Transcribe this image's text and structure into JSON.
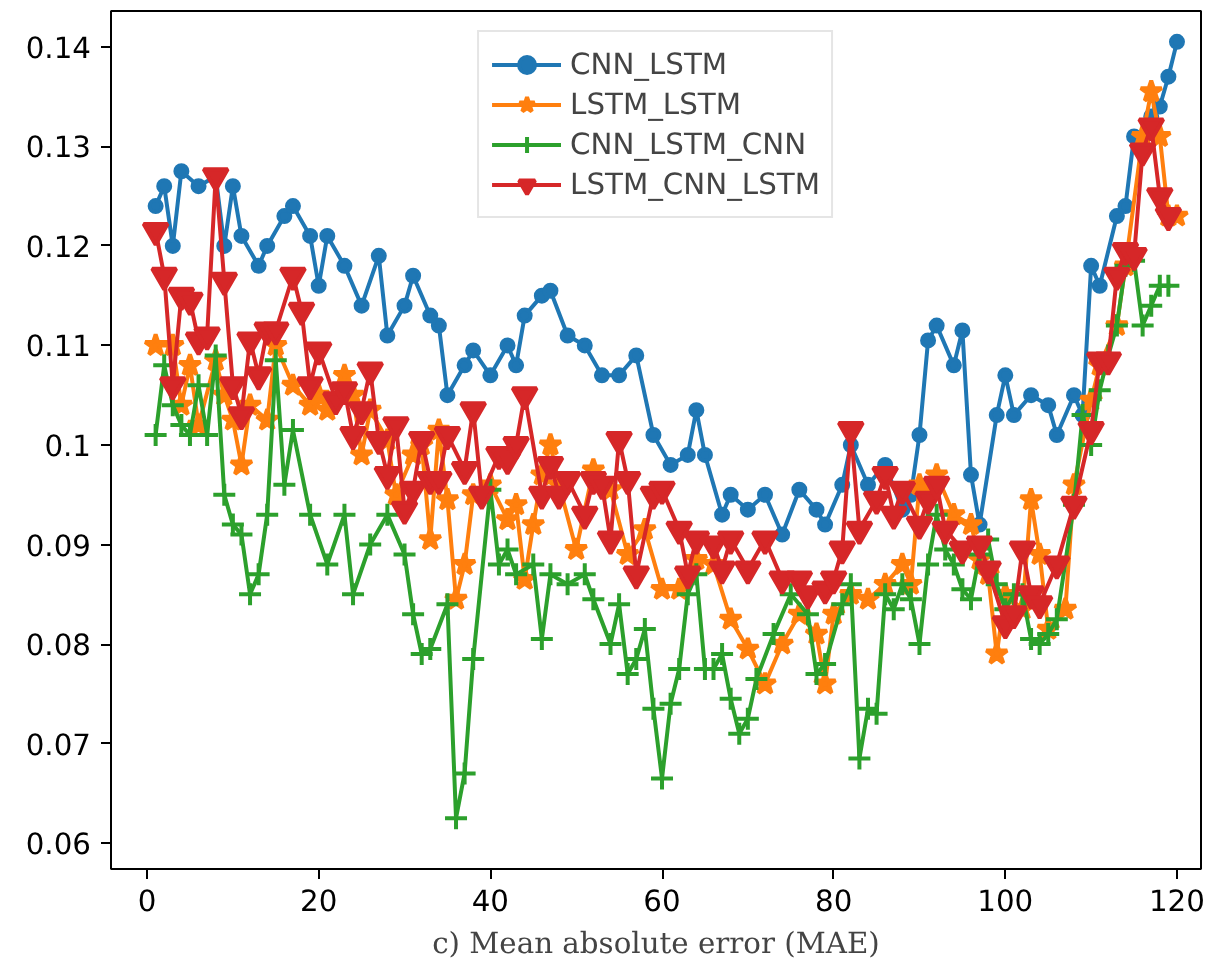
{
  "chart_data": {
    "type": "line",
    "xlabel": "c) Mean absolute error (MAE)",
    "xlim": [
      -4.2,
      122.8
    ],
    "ylim": [
      0.0574,
      0.1436
    ],
    "xticks": [
      0,
      20,
      40,
      60,
      80,
      100,
      120
    ],
    "yticks": [
      0.06,
      0.07,
      0.08,
      0.09,
      0.1,
      0.11,
      0.12,
      0.13,
      0.14
    ],
    "grid": false,
    "legend": "top",
    "series": [
      {
        "name": "CNN_LSTM",
        "color": "#1f77b4",
        "marker": "circle",
        "x": [
          1,
          2,
          3,
          4,
          6,
          8,
          9,
          10,
          11,
          13,
          14,
          16,
          17,
          19,
          20,
          21,
          23,
          25,
          27,
          28,
          30,
          31,
          33,
          34,
          35,
          37,
          38,
          40,
          42,
          43,
          44,
          46,
          47,
          49,
          51,
          53,
          55,
          57,
          59,
          61,
          63,
          64,
          65,
          67,
          68,
          70,
          72,
          74,
          76,
          78,
          79,
          81,
          82,
          84,
          86,
          88,
          89,
          90,
          91,
          92,
          94,
          95,
          96,
          97,
          99,
          100,
          101,
          103,
          105,
          106,
          108,
          109,
          110,
          111,
          113,
          114,
          115,
          116,
          117,
          118,
          119,
          120
        ],
        "values": [
          0.124,
          0.126,
          0.12,
          0.1275,
          0.126,
          0.127,
          0.12,
          0.126,
          0.121,
          0.118,
          0.12,
          0.123,
          0.124,
          0.121,
          0.116,
          0.121,
          0.118,
          0.114,
          0.119,
          0.111,
          0.114,
          0.117,
          0.113,
          0.112,
          0.105,
          0.108,
          0.1095,
          0.107,
          0.11,
          0.108,
          0.113,
          0.115,
          0.1155,
          0.111,
          0.11,
          0.107,
          0.107,
          0.109,
          0.101,
          0.098,
          0.099,
          0.1035,
          0.099,
          0.093,
          0.095,
          0.0935,
          0.095,
          0.091,
          0.0955,
          0.0935,
          0.092,
          0.096,
          0.1,
          0.096,
          0.098,
          0.0935,
          0.095,
          0.101,
          0.1105,
          0.112,
          0.108,
          0.1115,
          0.097,
          0.092,
          0.103,
          0.107,
          0.103,
          0.105,
          0.104,
          0.101,
          0.105,
          0.103,
          0.118,
          0.116,
          0.123,
          0.124,
          0.131,
          0.13,
          0.133,
          0.134,
          0.137,
          0.1405
        ]
      },
      {
        "name": "LSTM_LSTM",
        "color": "#ff7f0e",
        "marker": "star",
        "x": [
          1,
          3,
          4,
          5,
          6,
          8,
          9,
          10,
          11,
          12,
          14,
          15,
          17,
          19,
          20,
          21,
          23,
          24,
          25,
          26,
          28,
          29,
          31,
          32,
          33,
          34,
          35,
          36,
          37,
          38,
          40,
          42,
          43,
          44,
          45,
          46,
          47,
          48,
          50,
          52,
          54,
          56,
          58,
          60,
          62,
          64,
          66,
          68,
          70,
          72,
          74,
          76,
          78,
          79,
          80,
          82,
          84,
          86,
          88,
          89,
          90,
          91,
          92,
          94,
          96,
          97,
          98,
          99,
          100,
          102,
          103,
          104,
          105,
          107,
          108,
          110,
          111,
          113,
          114,
          116,
          117,
          118,
          119,
          120
        ],
        "values": [
          0.11,
          0.11,
          0.104,
          0.108,
          0.102,
          0.1085,
          0.105,
          0.1025,
          0.098,
          0.104,
          0.1025,
          0.11,
          0.106,
          0.104,
          0.105,
          0.1035,
          0.107,
          0.105,
          0.099,
          0.1035,
          0.1005,
          0.095,
          0.099,
          0.1,
          0.0905,
          0.1015,
          0.0945,
          0.0845,
          0.088,
          0.095,
          0.096,
          0.0925,
          0.094,
          0.0865,
          0.092,
          0.097,
          0.1,
          0.096,
          0.0895,
          0.0975,
          0.0955,
          0.089,
          0.0915,
          0.0855,
          0.0855,
          0.0885,
          0.088,
          0.0825,
          0.0795,
          0.076,
          0.08,
          0.083,
          0.081,
          0.076,
          0.083,
          0.085,
          0.0845,
          0.086,
          0.088,
          0.086,
          0.096,
          0.0955,
          0.097,
          0.093,
          0.092,
          0.0885,
          0.087,
          0.079,
          0.085,
          0.0835,
          0.0945,
          0.089,
          0.0815,
          0.0835,
          0.096,
          0.1045,
          0.108,
          0.112,
          0.118,
          0.131,
          0.1355,
          0.131,
          0.123,
          0.123
        ]
      },
      {
        "name": "CNN_LSTM_CNN",
        "color": "#2ca02c",
        "marker": "cross",
        "x": [
          1,
          2,
          3,
          4,
          5,
          6,
          7,
          8,
          9,
          10,
          11,
          12,
          13,
          14,
          15,
          16,
          17,
          19,
          21,
          23,
          24,
          26,
          28,
          30,
          31,
          32,
          33,
          35,
          36,
          37,
          38,
          40,
          41,
          42,
          43,
          45,
          46,
          47,
          49,
          51,
          52,
          54,
          55,
          56,
          57,
          58,
          59,
          60,
          61,
          62,
          63,
          64,
          65,
          66,
          67,
          68,
          69,
          70,
          71,
          73,
          75,
          77,
          78,
          79,
          81,
          82,
          83,
          84,
          85,
          86,
          87,
          88,
          89,
          90,
          91,
          92,
          93,
          94,
          95,
          96,
          97,
          98,
          99,
          100,
          101,
          102,
          103,
          104,
          105,
          106,
          108,
          109,
          110,
          111,
          112,
          113,
          114,
          115,
          116,
          117,
          118,
          119
        ],
        "values": [
          0.101,
          0.108,
          0.104,
          0.102,
          0.101,
          0.106,
          0.101,
          0.109,
          0.095,
          0.092,
          0.091,
          0.085,
          0.087,
          0.093,
          0.1085,
          0.096,
          0.1015,
          0.093,
          0.088,
          0.093,
          0.085,
          0.09,
          0.093,
          0.089,
          0.083,
          0.079,
          0.0795,
          0.084,
          0.0625,
          0.067,
          0.0785,
          0.0955,
          0.088,
          0.0895,
          0.087,
          0.088,
          0.0805,
          0.087,
          0.086,
          0.087,
          0.0845,
          0.08,
          0.084,
          0.077,
          0.0785,
          0.0815,
          0.0735,
          0.0665,
          0.074,
          0.0775,
          0.085,
          0.087,
          0.0775,
          0.0775,
          0.079,
          0.0745,
          0.071,
          0.0725,
          0.0765,
          0.081,
          0.085,
          0.083,
          0.077,
          0.078,
          0.084,
          0.086,
          0.0685,
          0.0735,
          0.073,
          0.085,
          0.0835,
          0.086,
          0.0845,
          0.08,
          0.088,
          0.093,
          0.0895,
          0.088,
          0.0855,
          0.0845,
          0.089,
          0.0905,
          0.086,
          0.0835,
          0.085,
          0.085,
          0.0805,
          0.08,
          0.081,
          0.0825,
          0.094,
          0.103,
          0.1,
          0.1055,
          0.109,
          0.112,
          0.118,
          0.1185,
          0.112,
          0.114,
          0.116,
          0.116
        ]
      },
      {
        "name": "LSTM_CNN_LSTM",
        "color": "#d62728",
        "marker": "triangle",
        "x": [
          1,
          2,
          3,
          4,
          5,
          6,
          7,
          8,
          9,
          10,
          11,
          12,
          13,
          14,
          15,
          17,
          18,
          19,
          20,
          22,
          23,
          24,
          25,
          26,
          27,
          28,
          29,
          30,
          31,
          32,
          33,
          34,
          35,
          37,
          38,
          39,
          41,
          42,
          43,
          44,
          46,
          47,
          48,
          49,
          51,
          52,
          53,
          54,
          55,
          56,
          57,
          59,
          60,
          62,
          63,
          64,
          66,
          67,
          68,
          70,
          72,
          74,
          76,
          77,
          79,
          80,
          81,
          82,
          83,
          85,
          86,
          87,
          88,
          90,
          91,
          92,
          93,
          95,
          97,
          98,
          100,
          101,
          102,
          103,
          104,
          106,
          108,
          110,
          111,
          112,
          113,
          114,
          115,
          116,
          117,
          118,
          119
        ],
        "values": [
          0.1215,
          0.117,
          0.106,
          0.115,
          0.1145,
          0.1105,
          0.111,
          0.127,
          0.1165,
          0.106,
          0.103,
          0.1105,
          0.107,
          0.1115,
          0.1115,
          0.117,
          0.1135,
          0.106,
          0.1095,
          0.1045,
          0.1055,
          0.101,
          0.1035,
          0.1075,
          0.1005,
          0.097,
          0.102,
          0.0935,
          0.0955,
          0.1005,
          0.0965,
          0.0965,
          0.101,
          0.0975,
          0.1035,
          0.095,
          0.099,
          0.0985,
          0.1,
          0.105,
          0.095,
          0.098,
          0.095,
          0.0965,
          0.093,
          0.0965,
          0.096,
          0.0905,
          0.1005,
          0.0965,
          0.087,
          0.095,
          0.0955,
          0.0915,
          0.087,
          0.0905,
          0.09,
          0.0875,
          0.0905,
          0.0875,
          0.0905,
          0.0865,
          0.0865,
          0.085,
          0.0855,
          0.0865,
          0.0895,
          0.1015,
          0.0915,
          0.0945,
          0.097,
          0.093,
          0.0955,
          0.092,
          0.0945,
          0.096,
          0.0915,
          0.0895,
          0.09,
          0.0875,
          0.082,
          0.083,
          0.0895,
          0.085,
          0.084,
          0.088,
          0.094,
          0.1015,
          0.1085,
          0.1085,
          0.117,
          0.1195,
          0.119,
          0.1295,
          0.132,
          0.125,
          0.123
        ]
      }
    ]
  }
}
